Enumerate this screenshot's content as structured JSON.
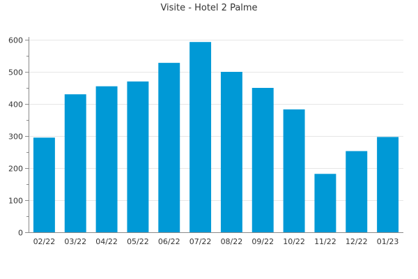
{
  "chart_data": {
    "type": "bar",
    "title": "Visite - Hotel 2 Palme",
    "xlabel": "",
    "ylabel": "",
    "categories": [
      "02/22",
      "03/22",
      "04/22",
      "05/22",
      "06/22",
      "07/22",
      "08/22",
      "09/22",
      "10/22",
      "11/22",
      "12/22",
      "01/23"
    ],
    "values": [
      295,
      430,
      455,
      470,
      528,
      593,
      500,
      450,
      383,
      182,
      253,
      297
    ],
    "ylim": [
      0,
      600
    ],
    "yticks": [
      0,
      100,
      200,
      300,
      400,
      500,
      600
    ],
    "grid": true,
    "legend": "none",
    "bar_color": "#0099d6"
  }
}
